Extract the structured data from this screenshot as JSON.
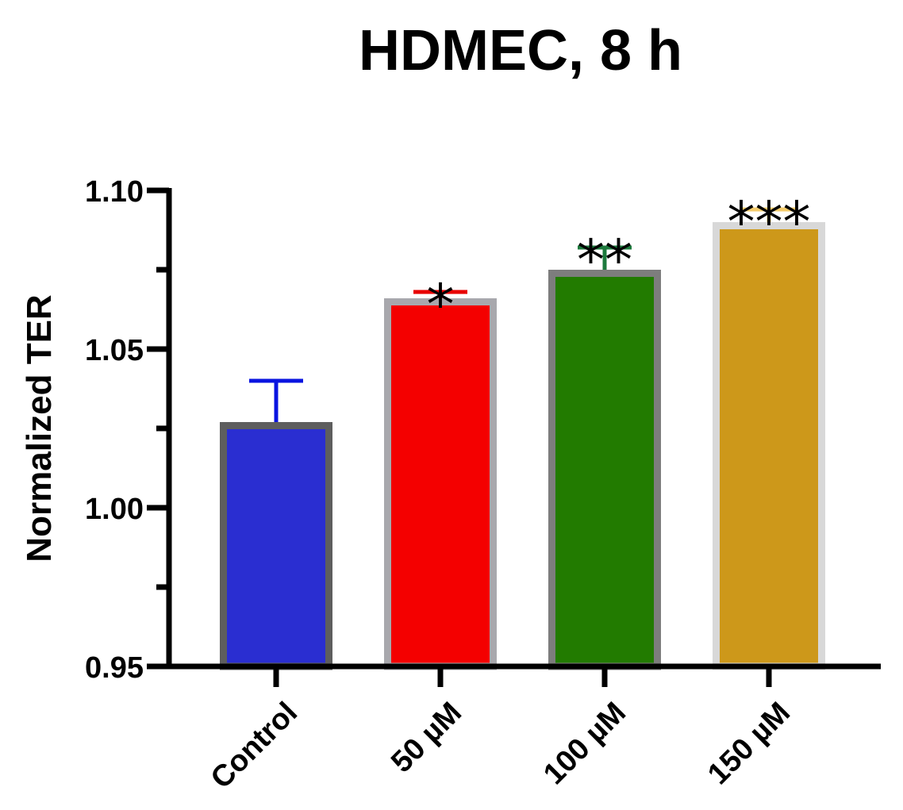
{
  "chart_data": {
    "type": "bar",
    "title": "HDMEC, 8 h",
    "xlabel": "",
    "ylabel": "Normalized TER",
    "ylim": [
      0.95,
      1.1
    ],
    "yticks": [
      {
        "value": 0.95,
        "label": "0.95"
      },
      {
        "value": 1.0,
        "label": "1.00"
      },
      {
        "value": 1.05,
        "label": "1.05"
      },
      {
        "value": 1.1,
        "label": "1.10"
      }
    ],
    "yminor_ticks": [
      0.975,
      1.025,
      1.075
    ],
    "categories": [
      "Control",
      "50 µM",
      "100 µM",
      "150 µM"
    ],
    "values": [
      1.027,
      1.066,
      1.075,
      1.09
    ],
    "error_upper": [
      1.04,
      1.068,
      1.082,
      1.094
    ],
    "significance": [
      "",
      "*",
      "**",
      "***"
    ],
    "colors": {
      "fill": [
        "#2a2ed1",
        "#f40000",
        "#227b00",
        "#cd981a"
      ],
      "border": [
        "#5e5e5e",
        "#a8a8ad",
        "#7d7d7d",
        "#d8d8d8"
      ],
      "error": [
        "#0a14e0",
        "#e80000",
        "#1d7a3d",
        "#f5cc6b"
      ]
    },
    "grid": false,
    "legend": "none"
  }
}
